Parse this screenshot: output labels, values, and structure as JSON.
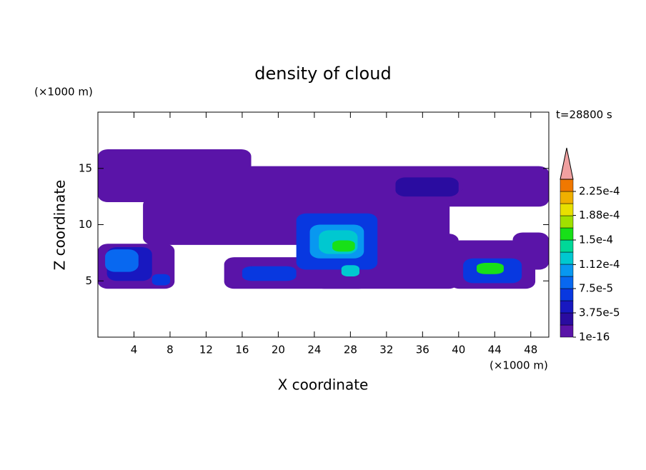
{
  "chart_data": {
    "type": "contour",
    "title": "density of cloud",
    "time_label": "t=28800 s",
    "x_label": "X coordinate",
    "y_label": "Z coordinate",
    "x_unit": "(×1000 m)",
    "y_unit": "(×1000 m)",
    "xlim": [
      0,
      50
    ],
    "ylim": [
      0,
      20
    ],
    "xticks": [
      4,
      8,
      12,
      16,
      20,
      24,
      28,
      32,
      36,
      40,
      44,
      48
    ],
    "yticks": [
      5,
      10,
      15
    ],
    "levels": [
      1e-16,
      1.875e-05,
      3.75e-05,
      5.625e-05,
      7.5e-05,
      9.375e-05,
      0.0001125,
      0.00013125,
      0.00015,
      0.00016875,
      0.0001875,
      0.00020625,
      0.000225,
      0.00024375
    ],
    "colors": [
      "#5a14a8",
      "#2a0ca0",
      "#1818c0",
      "#0838e0",
      "#0868f0",
      "#0898f0",
      "#00c8d0",
      "#00d898",
      "#18e018",
      "#a0e000",
      "#e8e000",
      "#f0b000",
      "#f07800",
      "#f0a0a0"
    ],
    "colorbar_ticks": [
      {
        "value": 1e-16,
        "label": "1e-16"
      },
      {
        "value": 3.75e-05,
        "label": "3.75e-5"
      },
      {
        "value": 7.5e-05,
        "label": "7.5e-5"
      },
      {
        "value": 0.000112,
        "label": "1.12e-4"
      },
      {
        "value": 0.00015,
        "label": "1.5e-4"
      },
      {
        "value": 0.000188,
        "label": "1.88e-4"
      },
      {
        "value": 0.000225,
        "label": "2.25e-4"
      }
    ],
    "regions": [
      {
        "x": [
          0,
          17
        ],
        "z": [
          12,
          16.7
        ],
        "value": 1e-16
      },
      {
        "x": [
          16,
          50
        ],
        "z": [
          11.6,
          15.2
        ],
        "value": 1e-16
      },
      {
        "x": [
          5,
          39
        ],
        "z": [
          8.2,
          12.4
        ],
        "value": 1e-16
      },
      {
        "x": [
          0,
          8.5
        ],
        "z": [
          4.3,
          8.3
        ],
        "value": 1e-16
      },
      {
        "x": [
          14,
          30
        ],
        "z": [
          4.3,
          7.1
        ],
        "value": 1e-16
      },
      {
        "x": [
          24,
          40
        ],
        "z": [
          4.3,
          9.2
        ],
        "value": 1e-16
      },
      {
        "x": [
          39,
          48.5
        ],
        "z": [
          4.3,
          8.6
        ],
        "value": 1e-16
      },
      {
        "x": [
          46,
          50
        ],
        "z": [
          6,
          9.3
        ],
        "value": 1e-16
      },
      {
        "x": [
          40,
          50
        ],
        "z": [
          11.8,
          13.2
        ],
        "value": 1e-16
      },
      {
        "x": [
          33,
          40
        ],
        "z": [
          12.5,
          14.2
        ],
        "value": 1.875e-05
      },
      {
        "x": [
          1,
          6
        ],
        "z": [
          5,
          8
        ],
        "value": 3.75e-05
      },
      {
        "x": [
          22,
          31
        ],
        "z": [
          6,
          11
        ],
        "value": 5.625e-05
      },
      {
        "x": [
          0.8,
          4.5
        ],
        "z": [
          5.8,
          7.8
        ],
        "value": 7.5e-05
      },
      {
        "x": [
          23.5,
          29.5
        ],
        "z": [
          7,
          10
        ],
        "value": 9.375e-05
      },
      {
        "x": [
          24.5,
          28.8
        ],
        "z": [
          7.4,
          9.5
        ],
        "value": 0.0001125
      },
      {
        "x": [
          26,
          28.5
        ],
        "z": [
          7.6,
          8.6
        ],
        "value": 0.00015
      },
      {
        "x": [
          16,
          22
        ],
        "z": [
          5,
          6.3
        ],
        "value": 5.625e-05
      },
      {
        "x": [
          6,
          8
        ],
        "z": [
          4.6,
          5.6
        ],
        "value": 5.625e-05
      },
      {
        "x": [
          40.5,
          47
        ],
        "z": [
          4.8,
          7
        ],
        "value": 5.625e-05
      },
      {
        "x": [
          42,
          45
        ],
        "z": [
          5.6,
          6.6
        ],
        "value": 0.00015
      },
      {
        "x": [
          27,
          29
        ],
        "z": [
          5.4,
          6.4
        ],
        "value": 0.0001125
      }
    ]
  }
}
